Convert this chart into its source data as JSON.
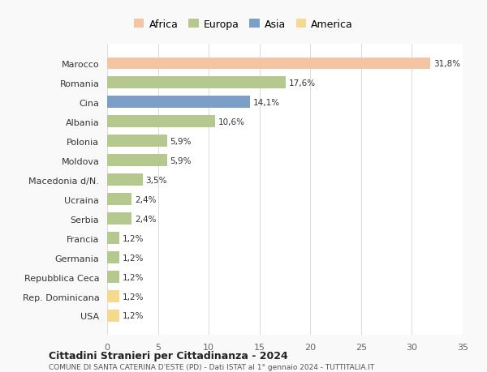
{
  "countries": [
    "Marocco",
    "Romania",
    "Cina",
    "Albania",
    "Polonia",
    "Moldova",
    "Macedonia d/N.",
    "Ucraina",
    "Serbia",
    "Francia",
    "Germania",
    "Repubblica Ceca",
    "Rep. Dominicana",
    "USA"
  ],
  "values": [
    31.8,
    17.6,
    14.1,
    10.6,
    5.9,
    5.9,
    3.5,
    2.4,
    2.4,
    1.2,
    1.2,
    1.2,
    1.2,
    1.2
  ],
  "labels": [
    "31,8%",
    "17,6%",
    "14,1%",
    "10,6%",
    "5,9%",
    "5,9%",
    "3,5%",
    "2,4%",
    "2,4%",
    "1,2%",
    "1,2%",
    "1,2%",
    "1,2%",
    "1,2%"
  ],
  "continents": [
    "Africa",
    "Europa",
    "Asia",
    "Europa",
    "Europa",
    "Europa",
    "Europa",
    "Europa",
    "Europa",
    "Europa",
    "Europa",
    "Europa",
    "America",
    "America"
  ],
  "colors": {
    "Africa": "#F5C5A3",
    "Europa": "#B5C98E",
    "Asia": "#7B9FC7",
    "America": "#F5D98E"
  },
  "legend_order": [
    "Africa",
    "Europa",
    "Asia",
    "America"
  ],
  "title1": "Cittadini Stranieri per Cittadinanza - 2024",
  "title2": "COMUNE DI SANTA CATERINA D'ESTE (PD) - Dati ISTAT al 1° gennaio 2024 - TUTTITALIA.IT",
  "xlim": [
    0,
    35
  ],
  "xticks": [
    0,
    5,
    10,
    15,
    20,
    25,
    30,
    35
  ],
  "bg_color": "#f9f9f9",
  "plot_bg_color": "#ffffff"
}
